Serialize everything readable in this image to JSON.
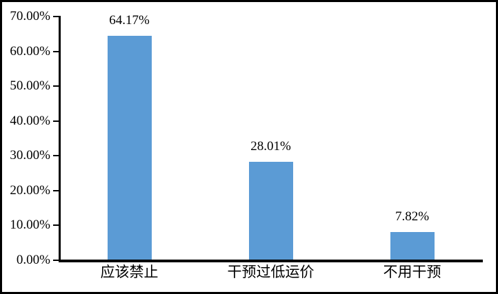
{
  "figure": {
    "background_color": "#ffffff",
    "border_color": "#000000"
  },
  "chart_data": {
    "type": "bar",
    "title": "",
    "xlabel": "",
    "ylabel": "",
    "categories": [
      "应该禁止",
      "干预过低运价",
      "不用干预"
    ],
    "values": [
      64.17,
      28.01,
      7.82
    ],
    "data_labels": [
      "64.17%",
      "28.01%",
      "7.82%"
    ],
    "y_tick_labels_top_to_bottom": [
      "70.00%",
      "60.00%",
      "50.00%",
      "40.00%",
      "30.00%",
      "20.00%",
      "10.00%",
      "0.00%"
    ],
    "ylim": [
      0,
      70
    ],
    "y_tick_step": 10,
    "grid": false,
    "legend_position": "none",
    "bar_color": "#5B9BD5",
    "axis_color": "#000000",
    "text_color": "#000000"
  }
}
